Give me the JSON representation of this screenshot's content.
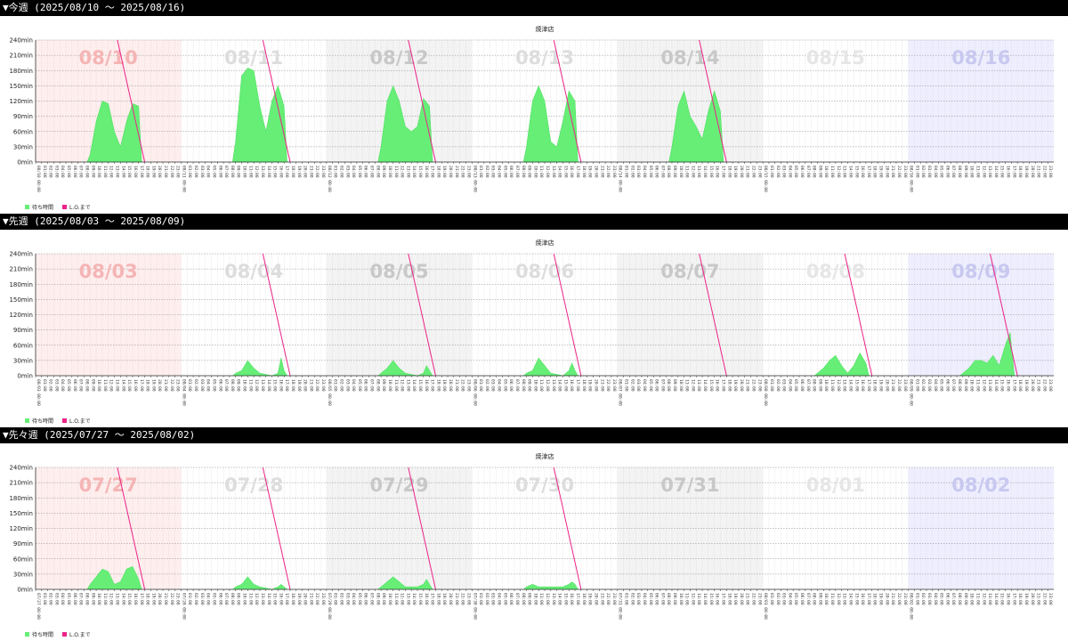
{
  "weeks": [
    {
      "header": "▼今週 (2025/08/10 〜 2025/08/16)",
      "chart_data": {
        "type": "area",
        "title": "焼津店",
        "ylim": [
          0,
          240
        ],
        "yticks": [
          "0min",
          "30min",
          "60min",
          "90min",
          "120min",
          "150min",
          "180min",
          "210min",
          "240min"
        ],
        "days": [
          "08/10",
          "08/11",
          "08/12",
          "08/13",
          "08/14",
          "08/15",
          "08/16"
        ],
        "series": [
          {
            "name": "待ち時間",
            "color": "#66ee77",
            "values_by_day": [
              {
                "start": 8.5,
                "end": 17.5,
                "x": [
                  8.5,
                  9,
                  10,
                  11,
                  12,
                  13,
                  14,
                  15,
                  16,
                  17,
                  17.5
                ],
                "y": [
                  0,
                  15,
                  80,
                  120,
                  115,
                  60,
                  30,
                  80,
                  115,
                  110,
                  0
                ]
              },
              {
                "start": 8.5,
                "end": 17.5,
                "x": [
                  8.5,
                  9,
                  10,
                  11,
                  12,
                  13,
                  14,
                  15,
                  16,
                  17,
                  17.5
                ],
                "y": [
                  0,
                  40,
                  170,
                  185,
                  180,
                  110,
                  60,
                  120,
                  150,
                  110,
                  0
                ]
              },
              {
                "start": 8.5,
                "end": 17.5,
                "x": [
                  8.5,
                  9,
                  10,
                  11,
                  12,
                  13,
                  14,
                  15,
                  16,
                  17,
                  17.5
                ],
                "y": [
                  0,
                  30,
                  120,
                  150,
                  120,
                  70,
                  60,
                  70,
                  125,
                  110,
                  0
                ]
              },
              {
                "start": 8.5,
                "end": 17.5,
                "x": [
                  8.5,
                  9,
                  10,
                  11,
                  12,
                  13,
                  14,
                  15,
                  16,
                  17,
                  17.5
                ],
                "y": [
                  0,
                  30,
                  120,
                  150,
                  120,
                  40,
                  30,
                  80,
                  140,
                  120,
                  0
                ]
              },
              {
                "start": 8.5,
                "end": 17.5,
                "x": [
                  8.5,
                  9,
                  10,
                  11,
                  12,
                  13,
                  14,
                  15,
                  16,
                  17,
                  17.5
                ],
                "y": [
                  0,
                  30,
                  110,
                  140,
                  90,
                  70,
                  45,
                  100,
                  140,
                  100,
                  0
                ]
              },
              {
                "start": 0,
                "end": 0,
                "x": [],
                "y": []
              },
              {
                "start": 0,
                "end": 0,
                "x": [],
                "y": []
              }
            ]
          },
          {
            "name": "L.O.まで",
            "color": "#ee2288"
          }
        ],
        "lo_lines": [
          [
            13.5,
            18.0
          ],
          [
            13.5,
            18.0
          ],
          [
            13.5,
            18.0
          ],
          [
            13.5,
            18.0
          ],
          [
            13.5,
            18.0
          ],
          [
            0,
            0
          ],
          [
            0,
            0
          ]
        ],
        "legend": [
          "待ち時間",
          "L.O.まで"
        ]
      }
    },
    {
      "header": "▼先週 (2025/08/03 〜 2025/08/09)",
      "chart_data": {
        "type": "area",
        "title": "焼津店",
        "ylim": [
          0,
          240
        ],
        "yticks": [
          "0min",
          "30min",
          "60min",
          "90min",
          "120min",
          "150min",
          "180min",
          "210min",
          "240min"
        ],
        "days": [
          "08/03",
          "08/04",
          "08/05",
          "08/06",
          "08/07",
          "08/08",
          "08/09"
        ],
        "series": [
          {
            "name": "待ち時間",
            "color": "#66ee77",
            "values_by_day": [
              {
                "start": 0,
                "end": 0,
                "x": [],
                "y": []
              },
              {
                "start": 8.5,
                "end": 17.5,
                "x": [
                  8.5,
                  9,
                  10,
                  11,
                  12,
                  13,
                  15,
                  16,
                  16.5,
                  17,
                  17.5
                ],
                "y": [
                  0,
                  5,
                  10,
                  30,
                  15,
                  5,
                  0,
                  5,
                  35,
                  10,
                  0
                ]
              },
              {
                "start": 8.5,
                "end": 17.5,
                "x": [
                  8.5,
                  9,
                  10,
                  11,
                  12,
                  13,
                  15,
                  16,
                  16.5,
                  17,
                  17.5
                ],
                "y": [
                  0,
                  5,
                  15,
                  30,
                  15,
                  5,
                  0,
                  5,
                  20,
                  10,
                  0
                ]
              },
              {
                "start": 8.5,
                "end": 17.5,
                "x": [
                  8.5,
                  9,
                  10,
                  11,
                  12,
                  13,
                  15,
                  16,
                  16.5,
                  17,
                  17.5
                ],
                "y": [
                  0,
                  5,
                  10,
                  35,
                  20,
                  5,
                  0,
                  10,
                  25,
                  10,
                  0
                ]
              },
              {
                "start": 0,
                "end": 0,
                "x": [],
                "y": []
              },
              {
                "start": 8.5,
                "end": 17.5,
                "x": [
                  8.5,
                  9,
                  10,
                  11,
                  12,
                  13,
                  14,
                  15,
                  16,
                  17,
                  17.5
                ],
                "y": [
                  0,
                  5,
                  15,
                  30,
                  40,
                  20,
                  5,
                  20,
                  45,
                  25,
                  0
                ]
              },
              {
                "start": 8.5,
                "end": 17.5,
                "x": [
                  8.5,
                  9,
                  10,
                  11,
                  12,
                  13,
                  14,
                  15,
                  16,
                  16.8,
                  17.5
                ],
                "y": [
                  0,
                  5,
                  15,
                  30,
                  30,
                  25,
                  40,
                  20,
                  60,
                  85,
                  0
                ]
              }
            ]
          },
          {
            "name": "L.O.まで",
            "color": "#ee2288"
          }
        ],
        "lo_lines": [
          [
            0,
            0
          ],
          [
            13.5,
            18.0
          ],
          [
            13.5,
            18.0
          ],
          [
            13.5,
            18.0
          ],
          [
            13.5,
            18.0
          ],
          [
            13.5,
            18.0
          ],
          [
            13.5,
            18.0
          ]
        ],
        "legend": [
          "待ち時間",
          "L.O.まで"
        ]
      }
    },
    {
      "header": "▼先々週 (2025/07/27 〜 2025/08/02)",
      "chart_data": {
        "type": "area",
        "title": "焼津店",
        "ylim": [
          0,
          240
        ],
        "yticks": [
          "0min",
          "30min",
          "60min",
          "90min",
          "120min",
          "150min",
          "180min",
          "210min",
          "240min"
        ],
        "days": [
          "07/27",
          "07/28",
          "07/29",
          "07/30",
          "07/31",
          "08/01",
          "08/02"
        ],
        "series": [
          {
            "name": "待ち時間",
            "color": "#66ee77",
            "values_by_day": [
              {
                "start": 8.5,
                "end": 17.5,
                "x": [
                  8.5,
                  9,
                  10,
                  11,
                  12,
                  13,
                  14,
                  15,
                  16,
                  17,
                  17.5
                ],
                "y": [
                  0,
                  10,
                  25,
                  40,
                  35,
                  10,
                  15,
                  40,
                  45,
                  20,
                  0
                ]
              },
              {
                "start": 8.5,
                "end": 17.5,
                "x": [
                  8.5,
                  9,
                  10,
                  11,
                  12,
                  13,
                  15,
                  16,
                  16.5,
                  17,
                  17.5
                ],
                "y": [
                  0,
                  5,
                  10,
                  25,
                  10,
                  5,
                  0,
                  5,
                  10,
                  5,
                  0
                ]
              },
              {
                "start": 8.5,
                "end": 17.5,
                "x": [
                  8.5,
                  9,
                  10,
                  11,
                  12,
                  13,
                  15,
                  16,
                  16.5,
                  17,
                  17.5
                ],
                "y": [
                  0,
                  5,
                  15,
                  25,
                  15,
                  5,
                  5,
                  10,
                  20,
                  10,
                  0
                ]
              },
              {
                "start": 8.5,
                "end": 17.5,
                "x": [
                  8.5,
                  9,
                  10,
                  11,
                  12,
                  13,
                  15,
                  16,
                  16.5,
                  17,
                  17.5
                ],
                "y": [
                  0,
                  5,
                  10,
                  5,
                  5,
                  5,
                  5,
                  10,
                  15,
                  10,
                  0
                ]
              },
              {
                "start": 0,
                "end": 0,
                "x": [],
                "y": []
              },
              {
                "start": 0,
                "end": 0,
                "x": [],
                "y": []
              },
              {
                "start": 0,
                "end": 0,
                "x": [],
                "y": []
              }
            ]
          },
          {
            "name": "L.O.まで",
            "color": "#ee2288"
          }
        ],
        "lo_lines": [
          [
            13.5,
            18.0
          ],
          [
            13.5,
            18.0
          ],
          [
            13.5,
            18.0
          ],
          [
            13.5,
            18.0
          ],
          [
            0,
            0
          ],
          [
            0,
            0
          ],
          [
            0,
            0
          ]
        ],
        "legend": [
          "待ち時間",
          "L.O.まで"
        ]
      }
    }
  ]
}
